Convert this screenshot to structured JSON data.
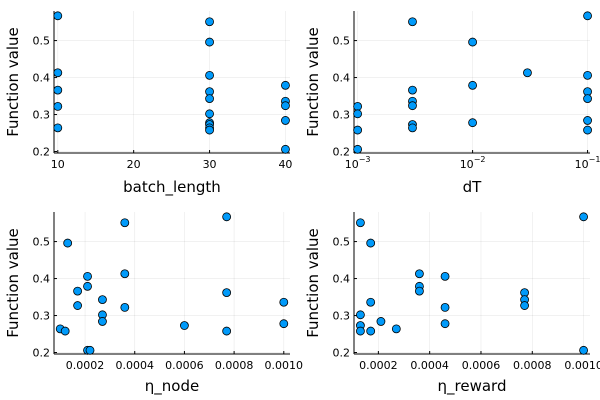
{
  "chart_data": [
    {
      "type": "scatter",
      "xlabel": "batch_length",
      "ylabel": "Function value",
      "xscale": "linear",
      "xlim": [
        9.5,
        40.6
      ],
      "ylim": [
        0.196,
        0.58
      ],
      "xticks": [
        10,
        20,
        30,
        40
      ],
      "xtick_labels": [
        "10",
        "20",
        "30",
        "40"
      ],
      "yticks": [
        0.2,
        0.3,
        0.4,
        0.5
      ],
      "ytick_labels": [
        "0.2",
        "0.3",
        "0.4",
        "0.5"
      ],
      "grid": true,
      "points": [
        [
          10,
          0.567
        ],
        [
          10,
          0.413
        ],
        [
          10,
          0.366
        ],
        [
          10,
          0.322
        ],
        [
          10,
          0.264
        ],
        [
          30,
          0.551
        ],
        [
          30,
          0.496
        ],
        [
          30,
          0.406
        ],
        [
          30,
          0.362
        ],
        [
          30,
          0.343
        ],
        [
          30,
          0.302
        ],
        [
          30,
          0.278
        ],
        [
          30,
          0.273
        ],
        [
          30,
          0.264
        ],
        [
          30,
          0.258
        ],
        [
          40,
          0.379
        ],
        [
          40,
          0.336
        ],
        [
          40,
          0.324
        ],
        [
          40,
          0.284
        ],
        [
          40,
          0.206
        ]
      ]
    },
    {
      "type": "scatter",
      "xlabel": "dT",
      "ylabel": "Function value",
      "xscale": "log10",
      "xlim": [
        0.00093,
        0.105
      ],
      "ylim": [
        0.196,
        0.58
      ],
      "xticks": [
        0.001,
        0.01,
        0.1
      ],
      "xtick_labels": [
        [
          "10",
          "−3"
        ],
        [
          "10",
          "−2"
        ],
        [
          "10",
          "−1"
        ]
      ],
      "yticks": [
        0.2,
        0.3,
        0.4,
        0.5
      ],
      "ytick_labels": [
        "0.2",
        "0.3",
        "0.4",
        "0.5"
      ],
      "grid": true,
      "points": [
        [
          0.001,
          0.322
        ],
        [
          0.001,
          0.302
        ],
        [
          0.001,
          0.258
        ],
        [
          0.001,
          0.206
        ],
        [
          0.003,
          0.551
        ],
        [
          0.003,
          0.366
        ],
        [
          0.003,
          0.336
        ],
        [
          0.003,
          0.324
        ],
        [
          0.003,
          0.273
        ],
        [
          0.003,
          0.264
        ],
        [
          0.01,
          0.496
        ],
        [
          0.01,
          0.379
        ],
        [
          0.01,
          0.278
        ],
        [
          0.03,
          0.413
        ],
        [
          0.1,
          0.567
        ],
        [
          0.1,
          0.406
        ],
        [
          0.1,
          0.362
        ],
        [
          0.1,
          0.343
        ],
        [
          0.1,
          0.284
        ],
        [
          0.1,
          0.258
        ]
      ]
    },
    {
      "type": "scatter",
      "xlabel": "η_node",
      "ylabel": "Function value",
      "xscale": "linear",
      "xlim": [
        7.5e-05,
        0.001025
      ],
      "ylim": [
        0.196,
        0.58
      ],
      "xticks": [
        0.0002,
        0.0004,
        0.0006,
        0.0008,
        0.001
      ],
      "xtick_labels": [
        "0.0002",
        "0.0004",
        "0.0006",
        "0.0008",
        "0.0010"
      ],
      "yticks": [
        0.2,
        0.3,
        0.4,
        0.5
      ],
      "ytick_labels": [
        "0.2",
        "0.3",
        "0.4",
        "0.5"
      ],
      "grid": true,
      "points": [
        [
          0.0001,
          0.264
        ],
        [
          0.00012,
          0.258
        ],
        [
          0.00013,
          0.496
        ],
        [
          0.00017,
          0.366
        ],
        [
          0.00017,
          0.327
        ],
        [
          0.00021,
          0.406
        ],
        [
          0.00021,
          0.379
        ],
        [
          0.00021,
          0.206
        ],
        [
          0.00022,
          0.206
        ],
        [
          0.00027,
          0.343
        ],
        [
          0.00027,
          0.302
        ],
        [
          0.00027,
          0.284
        ],
        [
          0.00036,
          0.551
        ],
        [
          0.00036,
          0.413
        ],
        [
          0.00036,
          0.322
        ],
        [
          0.0006,
          0.273
        ],
        [
          0.00077,
          0.567
        ],
        [
          0.00077,
          0.362
        ],
        [
          0.00077,
          0.258
        ],
        [
          0.001,
          0.336
        ],
        [
          0.001,
          0.278
        ]
      ]
    },
    {
      "type": "scatter",
      "xlabel": "η_reward",
      "ylabel": "Function value",
      "xscale": "linear",
      "xlim": [
        0.000105,
        0.001025
      ],
      "ylim": [
        0.196,
        0.58
      ],
      "xticks": [
        0.0002,
        0.0004,
        0.0006,
        0.0008,
        0.001
      ],
      "xtick_labels": [
        "0.0002",
        "0.0004",
        "0.0006",
        "0.0008",
        "0.0010"
      ],
      "yticks": [
        0.2,
        0.3,
        0.4,
        0.5
      ],
      "ytick_labels": [
        "0.2",
        "0.3",
        "0.4",
        "0.5"
      ],
      "grid": true,
      "points": [
        [
          0.00013,
          0.551
        ],
        [
          0.00013,
          0.302
        ],
        [
          0.00013,
          0.273
        ],
        [
          0.00013,
          0.258
        ],
        [
          0.00017,
          0.496
        ],
        [
          0.00017,
          0.336
        ],
        [
          0.00017,
          0.258
        ],
        [
          0.00021,
          0.284
        ],
        [
          0.00027,
          0.264
        ],
        [
          0.00036,
          0.413
        ],
        [
          0.00036,
          0.379
        ],
        [
          0.00036,
          0.366
        ],
        [
          0.00046,
          0.406
        ],
        [
          0.00046,
          0.322
        ],
        [
          0.00046,
          0.278
        ],
        [
          0.00077,
          0.362
        ],
        [
          0.00077,
          0.343
        ],
        [
          0.00077,
          0.327
        ],
        [
          0.001,
          0.567
        ],
        [
          0.001,
          0.206
        ]
      ]
    }
  ]
}
